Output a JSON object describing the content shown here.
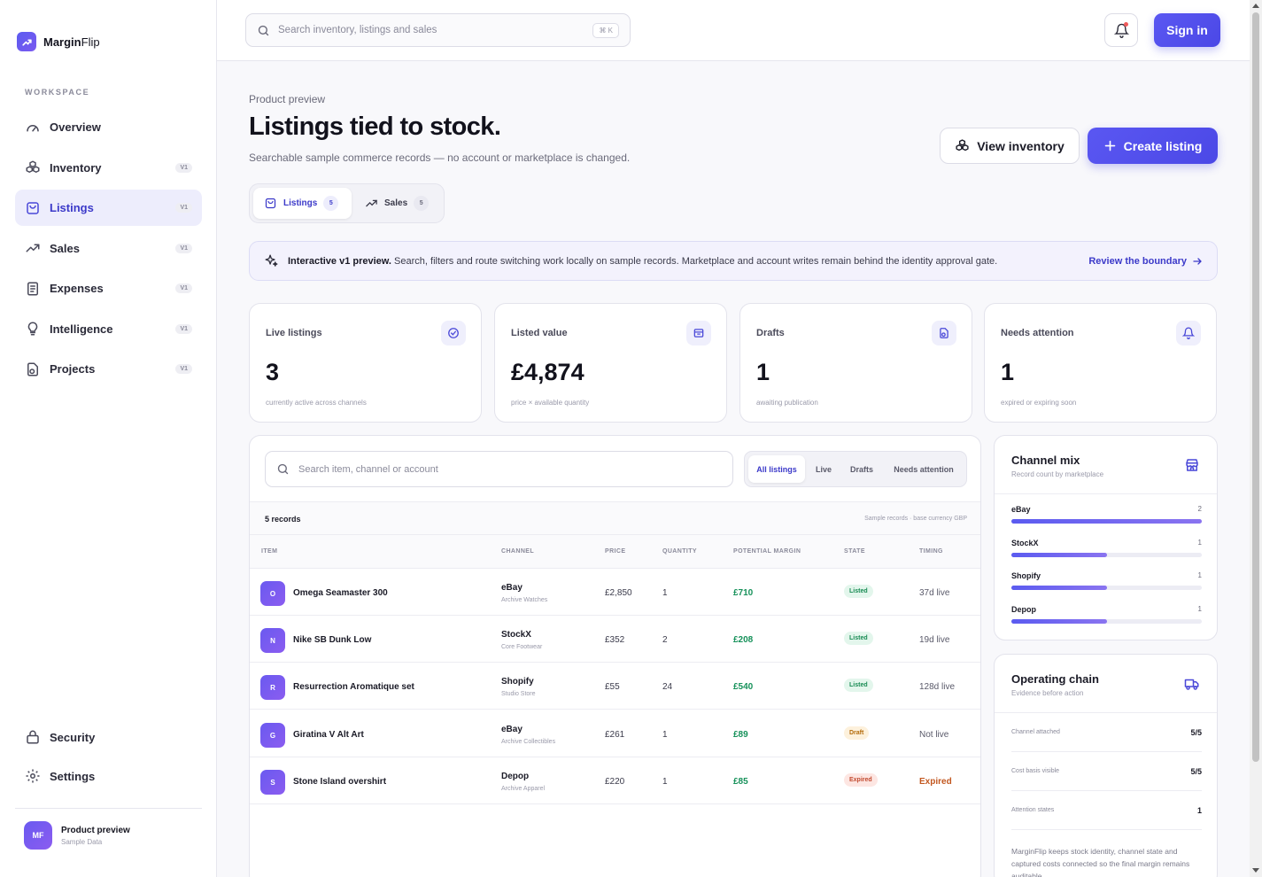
{
  "brand": {
    "name_bold": "Margin",
    "name_rest": "Flip"
  },
  "sidebar": {
    "section_label": "WORKSPACE",
    "items": [
      {
        "label": "Overview",
        "badge": "",
        "icon": "gauge-icon"
      },
      {
        "label": "Inventory",
        "badge": "V1",
        "icon": "boxes-icon"
      },
      {
        "label": "Listings",
        "badge": "V1",
        "icon": "shopping-bag-icon",
        "active": true
      },
      {
        "label": "Sales",
        "badge": "V1",
        "icon": "trend-up-icon"
      },
      {
        "label": "Expenses",
        "badge": "V1",
        "icon": "receipt-icon"
      },
      {
        "label": "Intelligence",
        "badge": "V1",
        "icon": "lightbulb-icon"
      },
      {
        "label": "Projects",
        "badge": "V1",
        "icon": "project-icon"
      }
    ],
    "bottom": [
      {
        "label": "Security",
        "icon": "lock-icon"
      },
      {
        "label": "Settings",
        "icon": "gear-icon"
      }
    ],
    "user": {
      "initials": "MF",
      "name": "Product preview",
      "sub": "Sample Data"
    }
  },
  "topbar": {
    "search_placeholder": "Search inventory, listings and sales",
    "shortcut": "⌘ K",
    "sign_in": "Sign in"
  },
  "header": {
    "eyebrow": "Product preview",
    "title": "Listings tied to stock.",
    "subtitle": "Searchable sample commerce records — no account or marketplace is changed.",
    "view_inventory": "View inventory",
    "create_listing": "Create listing"
  },
  "tabs": [
    {
      "label": "Listings",
      "count": "5"
    },
    {
      "label": "Sales",
      "count": "5"
    }
  ],
  "notice": {
    "bold": "Interactive v1 preview.",
    "text": " Search, filters and route switching work locally on sample records. Marketplace and account writes remain behind the identity approval gate.",
    "link": "Review the boundary"
  },
  "stats": [
    {
      "label": "Live listings",
      "value": "3",
      "sub": "currently active across channels",
      "icon": "check-circle-icon"
    },
    {
      "label": "Listed value",
      "value": "£4,874",
      "sub": "price × available quantity",
      "icon": "wallet-icon"
    },
    {
      "label": "Drafts",
      "value": "1",
      "sub": "awaiting publication",
      "icon": "draft-icon"
    },
    {
      "label": "Needs attention",
      "value": "1",
      "sub": "expired or expiring soon",
      "icon": "bell-icon"
    }
  ],
  "table": {
    "search_placeholder": "Search item, channel or account",
    "filters": [
      "All listings",
      "Live",
      "Drafts",
      "Needs attention"
    ],
    "record_count": "5 records",
    "record_note": "Sample records · base currency GBP",
    "columns": [
      "ITEM",
      "CHANNEL",
      "PRICE",
      "QUANTITY",
      "POTENTIAL MARGIN",
      "STATE",
      "TIMING"
    ],
    "rows": [
      {
        "initial": "O",
        "item": "Omega Seamaster 300",
        "channel": "eBay",
        "account": "Archive Watches",
        "price": "£2,850",
        "qty": "1",
        "margin": "£710",
        "state": "Listed",
        "timing": "37d live"
      },
      {
        "initial": "N",
        "item": "Nike SB Dunk Low",
        "channel": "StockX",
        "account": "Core Footwear",
        "price": "£352",
        "qty": "2",
        "margin": "£208",
        "state": "Listed",
        "timing": "19d live"
      },
      {
        "initial": "R",
        "item": "Resurrection Aromatique set",
        "channel": "Shopify",
        "account": "Studio Store",
        "price": "£55",
        "qty": "24",
        "margin": "£540",
        "state": "Listed",
        "timing": "128d live"
      },
      {
        "initial": "G",
        "item": "Giratina V Alt Art",
        "channel": "eBay",
        "account": "Archive Collectibles",
        "price": "£261",
        "qty": "1",
        "margin": "£89",
        "state": "Draft",
        "timing": "Not live"
      },
      {
        "initial": "S",
        "item": "Stone Island overshirt",
        "channel": "Depop",
        "account": "Archive Apparel",
        "price": "£220",
        "qty": "1",
        "margin": "£85",
        "state": "Expired",
        "timing": "Expired"
      }
    ]
  },
  "channel_mix": {
    "title": "Channel mix",
    "subtitle": "Record count by marketplace",
    "max": 2,
    "rows": [
      {
        "name": "eBay",
        "count": 2
      },
      {
        "name": "StockX",
        "count": 1
      },
      {
        "name": "Shopify",
        "count": 1
      },
      {
        "name": "Depop",
        "count": 1
      }
    ]
  },
  "chain": {
    "title": "Operating chain",
    "subtitle": "Evidence before action",
    "rows": [
      {
        "label": "Channel attached",
        "value": "5/5"
      },
      {
        "label": "Cost basis visible",
        "value": "5/5"
      },
      {
        "label": "Attention states",
        "value": "1"
      }
    ],
    "note": "MarginFlip keeps stock identity, channel state and captured costs connected so the final margin remains auditable."
  },
  "colors": {
    "accent": "#4b48e6",
    "margin": "#16915a"
  }
}
